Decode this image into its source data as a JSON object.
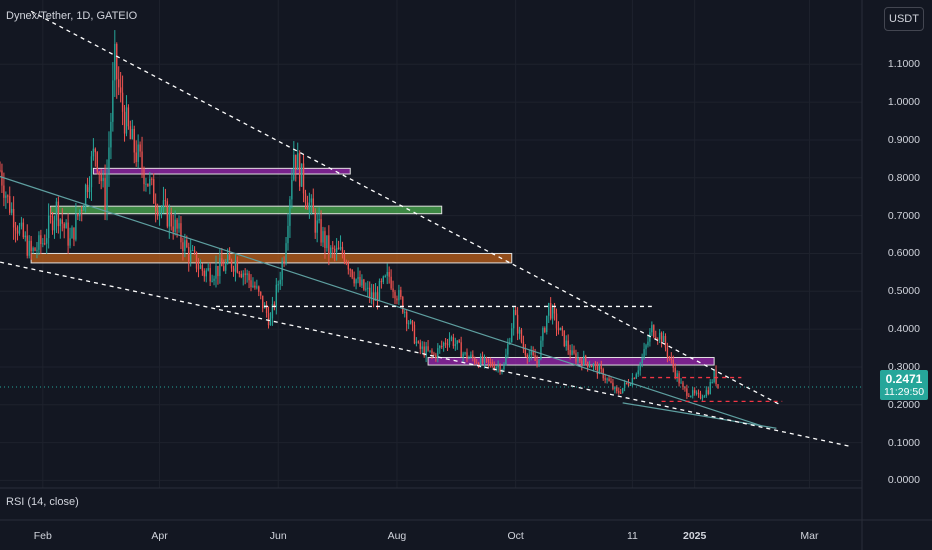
{
  "title": "Dynex/Tether, 1D, GATEIO",
  "currency_button": "USDT",
  "indicator_label": "RSI (14, close)",
  "last_price": "0.2471",
  "countdown": "11:29:50",
  "colors": {
    "background": "#131722",
    "up": "#26a69a",
    "down": "#ef5350",
    "trendline": "#5e9fa0",
    "dashed": "#ffffff",
    "zone_purple": "#9c27b0",
    "zone_green": "#4caf50",
    "zone_orange": "#c0621a",
    "support_red": "#f23645"
  },
  "chart_data": {
    "type": "candlestick",
    "title": "Dynex/Tether, 1D, GATEIO",
    "y_axis": {
      "ticks": [
        "1.1000",
        "1.0000",
        "0.9000",
        "0.8000",
        "0.7000",
        "0.6000",
        "0.5000",
        "0.4000",
        "0.3000",
        "0.2000",
        "0.1000",
        "0.0000"
      ],
      "range": [
        -0.02,
        1.27
      ],
      "scale": "linear",
      "position": "right"
    },
    "x_axis": {
      "ticks": [
        "Feb",
        "Apr",
        "Jun",
        "Aug",
        "Oct",
        "11",
        "2025",
        "Mar"
      ],
      "bold_ticks": [
        "2025"
      ],
      "range": [
        "2024-01-10",
        "2025-03-28"
      ]
    },
    "close_path": [
      {
        "d": "2024-01-10",
        "v": 0.82
      },
      {
        "d": "2024-01-14",
        "v": 0.74
      },
      {
        "d": "2024-01-20",
        "v": 0.66
      },
      {
        "d": "2024-01-26",
        "v": 0.6
      },
      {
        "d": "2024-02-01",
        "v": 0.63
      },
      {
        "d": "2024-02-08",
        "v": 0.72
      },
      {
        "d": "2024-02-15",
        "v": 0.63
      },
      {
        "d": "2024-02-22",
        "v": 0.75
      },
      {
        "d": "2024-02-28",
        "v": 0.88
      },
      {
        "d": "2024-03-04",
        "v": 0.74
      },
      {
        "d": "2024-03-09",
        "v": 1.1
      },
      {
        "d": "2024-03-12",
        "v": 1.0
      },
      {
        "d": "2024-03-17",
        "v": 0.9
      },
      {
        "d": "2024-03-23",
        "v": 0.83
      },
      {
        "d": "2024-03-30",
        "v": 0.74
      },
      {
        "d": "2024-04-08",
        "v": 0.68
      },
      {
        "d": "2024-04-16",
        "v": 0.6
      },
      {
        "d": "2024-04-24",
        "v": 0.55
      },
      {
        "d": "2024-05-02",
        "v": 0.56
      },
      {
        "d": "2024-05-10",
        "v": 0.58
      },
      {
        "d": "2024-05-20",
        "v": 0.51
      },
      {
        "d": "2024-05-28",
        "v": 0.42
      },
      {
        "d": "2024-06-04",
        "v": 0.6
      },
      {
        "d": "2024-06-09",
        "v": 0.87
      },
      {
        "d": "2024-06-14",
        "v": 0.78
      },
      {
        "d": "2024-06-20",
        "v": 0.68
      },
      {
        "d": "2024-06-28",
        "v": 0.6
      },
      {
        "d": "2024-07-05",
        "v": 0.6
      },
      {
        "d": "2024-07-12",
        "v": 0.52
      },
      {
        "d": "2024-07-20",
        "v": 0.48
      },
      {
        "d": "2024-07-28",
        "v": 0.54
      },
      {
        "d": "2024-08-05",
        "v": 0.45
      },
      {
        "d": "2024-08-12",
        "v": 0.35
      },
      {
        "d": "2024-08-20",
        "v": 0.33
      },
      {
        "d": "2024-08-28",
        "v": 0.38
      },
      {
        "d": "2024-09-05",
        "v": 0.33
      },
      {
        "d": "2024-09-15",
        "v": 0.31
      },
      {
        "d": "2024-09-25",
        "v": 0.3
      },
      {
        "d": "2024-09-30",
        "v": 0.44
      },
      {
        "d": "2024-10-05",
        "v": 0.35
      },
      {
        "d": "2024-10-12",
        "v": 0.31
      },
      {
        "d": "2024-10-18",
        "v": 0.46
      },
      {
        "d": "2024-10-23",
        "v": 0.4
      },
      {
        "d": "2024-10-30",
        "v": 0.33
      },
      {
        "d": "2024-11-08",
        "v": 0.31
      },
      {
        "d": "2024-11-15",
        "v": 0.28
      },
      {
        "d": "2024-11-22",
        "v": 0.23
      },
      {
        "d": "2024-11-30",
        "v": 0.27
      },
      {
        "d": "2024-12-05",
        "v": 0.32
      },
      {
        "d": "2024-12-10",
        "v": 0.4
      },
      {
        "d": "2024-12-15",
        "v": 0.38
      },
      {
        "d": "2024-12-20",
        "v": 0.31
      },
      {
        "d": "2024-12-26",
        "v": 0.24
      },
      {
        "d": "2025-01-03",
        "v": 0.22
      },
      {
        "d": "2025-01-08",
        "v": 0.24
      },
      {
        "d": "2025-01-11",
        "v": 0.28
      },
      {
        "d": "2025-01-13",
        "v": 0.2471
      }
    ],
    "spike_low": {
      "d": "2024-01-08",
      "v": 0.0
    },
    "drawings": {
      "dashed_lines": [
        {
          "from": {
            "d": "2024-01-26",
            "v": 1.24
          },
          "to": {
            "d": "2025-02-14",
            "v": 0.2
          },
          "color": "#ffffff"
        },
        {
          "from": {
            "d": "2023-12-25",
            "v": 0.595
          },
          "to": {
            "d": "2025-03-22",
            "v": 0.09
          },
          "color": "#ffffff"
        },
        {
          "from": {
            "d": "2024-04-30",
            "v": 0.46
          },
          "to": {
            "d": "2024-12-10",
            "v": 0.46
          },
          "color": "#ffffff"
        },
        {
          "from": {
            "d": "2024-12-05",
            "v": 0.272
          },
          "to": {
            "d": "2025-01-25",
            "v": 0.272
          },
          "color": "#f23645"
        },
        {
          "from": {
            "d": "2024-12-15",
            "v": 0.209
          },
          "to": {
            "d": "2025-02-15",
            "v": 0.209
          },
          "color": "#f23645"
        }
      ],
      "trendlines": [
        {
          "from": {
            "d": "2024-01-06",
            "v": 0.81
          },
          "to": {
            "d": "2025-02-04",
            "v": 0.145
          },
          "color": "#5e9fa0"
        },
        {
          "from": {
            "d": "2024-11-25",
            "v": 0.205
          },
          "to": {
            "d": "2025-02-12",
            "v": 0.138
          },
          "color": "#5e9fa0"
        }
      ],
      "zones": [
        {
          "from": "2024-02-27",
          "to": "2024-07-08",
          "low": 0.81,
          "high": 0.825,
          "color": "#9c27b0"
        },
        {
          "from": "2024-02-05",
          "to": "2024-08-24",
          "low": 0.705,
          "high": 0.725,
          "color": "#4caf50"
        },
        {
          "from": "2024-01-26",
          "to": "2024-09-29",
          "low": 0.575,
          "high": 0.6,
          "color": "#c0621a"
        },
        {
          "from": "2024-08-17",
          "to": "2025-01-11",
          "low": 0.305,
          "high": 0.325,
          "color": "#9c27b0"
        }
      ]
    },
    "last_price": 0.2471
  }
}
